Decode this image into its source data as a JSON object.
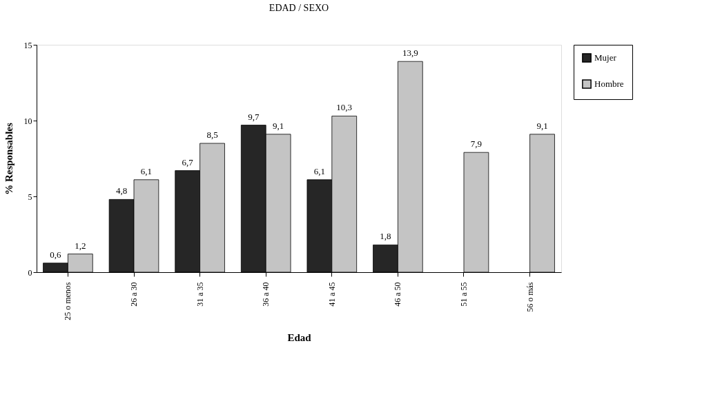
{
  "chart_data": {
    "type": "bar",
    "title": "EDAD / SEXO",
    "xlabel": "Edad",
    "ylabel": "% Responsables",
    "categories": [
      "25 o menos",
      "26 a 30",
      "31 a 35",
      "36 a 40",
      "41 a 45",
      "46 a 50",
      "51 a 55",
      "56 o más"
    ],
    "series": [
      {
        "name": "Mujer",
        "color": "#262626",
        "values": [
          0.6,
          4.8,
          6.7,
          9.7,
          6.1,
          1.8,
          null,
          null
        ],
        "value_labels": [
          "0,6",
          "4,8",
          "6,7",
          "9,7",
          "6,1",
          "1,8",
          null,
          null
        ]
      },
      {
        "name": "Hombre",
        "color": "#c4c4c4",
        "values": [
          1.2,
          6.1,
          8.5,
          9.1,
          10.3,
          13.9,
          7.9,
          9.1
        ],
        "value_labels": [
          "1,2",
          "6,1",
          "8,5",
          "9,1",
          "10,3",
          "13,9",
          "7,9",
          "9,1"
        ]
      }
    ],
    "ylim": [
      0,
      15
    ],
    "yticks": [
      0,
      5,
      10,
      15
    ],
    "grid": false,
    "legend": "right"
  }
}
